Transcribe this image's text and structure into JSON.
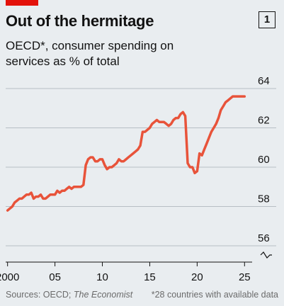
{
  "header": {
    "chart_number": "1"
  },
  "footer": {
    "source_prefix": "Sources: OECD; ",
    "source_publication": "The Economist",
    "note": "*28 countries with available data"
  },
  "colors": {
    "line": "#e8533a",
    "accent": "#e3120b",
    "background": "#e9edf0"
  },
  "chart_data": {
    "type": "line",
    "title": "Out of the hermitage",
    "subtitle": "OECD*, consumer spending on services as % of total",
    "xlabel": "",
    "ylabel": "",
    "ylim": [
      56,
      64
    ],
    "xlim": [
      1999.8,
      2025.8
    ],
    "y_axis_break": true,
    "grid": true,
    "y_axis_position": "right",
    "x_ticks": [
      {
        "value": 2000,
        "label": "2000"
      },
      {
        "value": 2005,
        "label": "05"
      },
      {
        "value": 2010,
        "label": "10"
      },
      {
        "value": 2015,
        "label": "15"
      },
      {
        "value": 2020,
        "label": "20"
      },
      {
        "value": 2025,
        "label": "25"
      }
    ],
    "y_ticks": [
      {
        "value": 56,
        "label": "56"
      },
      {
        "value": 58,
        "label": "58"
      },
      {
        "value": 60,
        "label": "60"
      },
      {
        "value": 62,
        "label": "62"
      },
      {
        "value": 64,
        "label": "64"
      }
    ],
    "series": [
      {
        "x": [
          2000.0,
          2000.25,
          2000.5,
          2000.75,
          2001.0,
          2001.25,
          2001.5,
          2001.75,
          2002.0,
          2002.25,
          2002.5,
          2002.75,
          2003.0,
          2003.25,
          2003.5,
          2003.75,
          2004.0,
          2004.25,
          2004.5,
          2004.75,
          2005.0,
          2005.25,
          2005.5,
          2005.75,
          2006.0,
          2006.25,
          2006.5,
          2006.75,
          2007.0,
          2007.25,
          2007.5,
          2007.75,
          2008.0,
          2008.25,
          2008.5,
          2008.75,
          2009.0,
          2009.25,
          2009.5,
          2009.75,
          2010.0,
          2010.25,
          2010.5,
          2010.75,
          2011.0,
          2011.25,
          2011.5,
          2011.75,
          2012.0,
          2012.25,
          2012.5,
          2012.75,
          2013.0,
          2013.25,
          2013.5,
          2013.75,
          2014.0,
          2014.25,
          2014.5,
          2014.75,
          2015.0,
          2015.25,
          2015.5,
          2015.75,
          2016.0,
          2016.25,
          2016.5,
          2016.75,
          2017.0,
          2017.25,
          2017.5,
          2017.75,
          2018.0,
          2018.25,
          2018.5,
          2018.75,
          2019.0,
          2019.25,
          2019.5,
          2019.75,
          2020.0,
          2020.25,
          2020.5,
          2020.75,
          2021.0,
          2021.25,
          2021.5,
          2021.75,
          2022.0,
          2022.25,
          2022.5,
          2022.75,
          2023.0,
          2023.25,
          2023.5,
          2023.75,
          2024.0,
          2024.25,
          2024.5,
          2024.75,
          2025.0
        ],
        "values": [
          57.8,
          57.9,
          58.0,
          58.2,
          58.3,
          58.4,
          58.4,
          58.5,
          58.6,
          58.6,
          58.7,
          58.4,
          58.5,
          58.5,
          58.6,
          58.4,
          58.4,
          58.5,
          58.6,
          58.6,
          58.6,
          58.8,
          58.7,
          58.8,
          58.8,
          58.9,
          59.0,
          58.9,
          59.0,
          59.0,
          59.0,
          59.0,
          59.1,
          60.1,
          60.4,
          60.5,
          60.5,
          60.3,
          60.3,
          60.4,
          60.4,
          60.1,
          59.9,
          60.0,
          60.0,
          60.1,
          60.2,
          60.4,
          60.3,
          60.3,
          60.4,
          60.5,
          60.6,
          60.7,
          60.8,
          60.9,
          61.1,
          61.8,
          61.8,
          61.9,
          62.0,
          62.2,
          62.3,
          62.4,
          62.3,
          62.3,
          62.3,
          62.2,
          62.1,
          62.2,
          62.4,
          62.5,
          62.5,
          62.7,
          62.8,
          62.6,
          60.2,
          60.0,
          60.0,
          59.7,
          59.8,
          60.7,
          60.6,
          60.9,
          61.2,
          61.5,
          61.8,
          62.0,
          62.2,
          62.5,
          62.9,
          63.1,
          63.3,
          63.4,
          63.5,
          63.6,
          63.6,
          63.6,
          63.6,
          63.6,
          63.6
        ]
      }
    ]
  }
}
